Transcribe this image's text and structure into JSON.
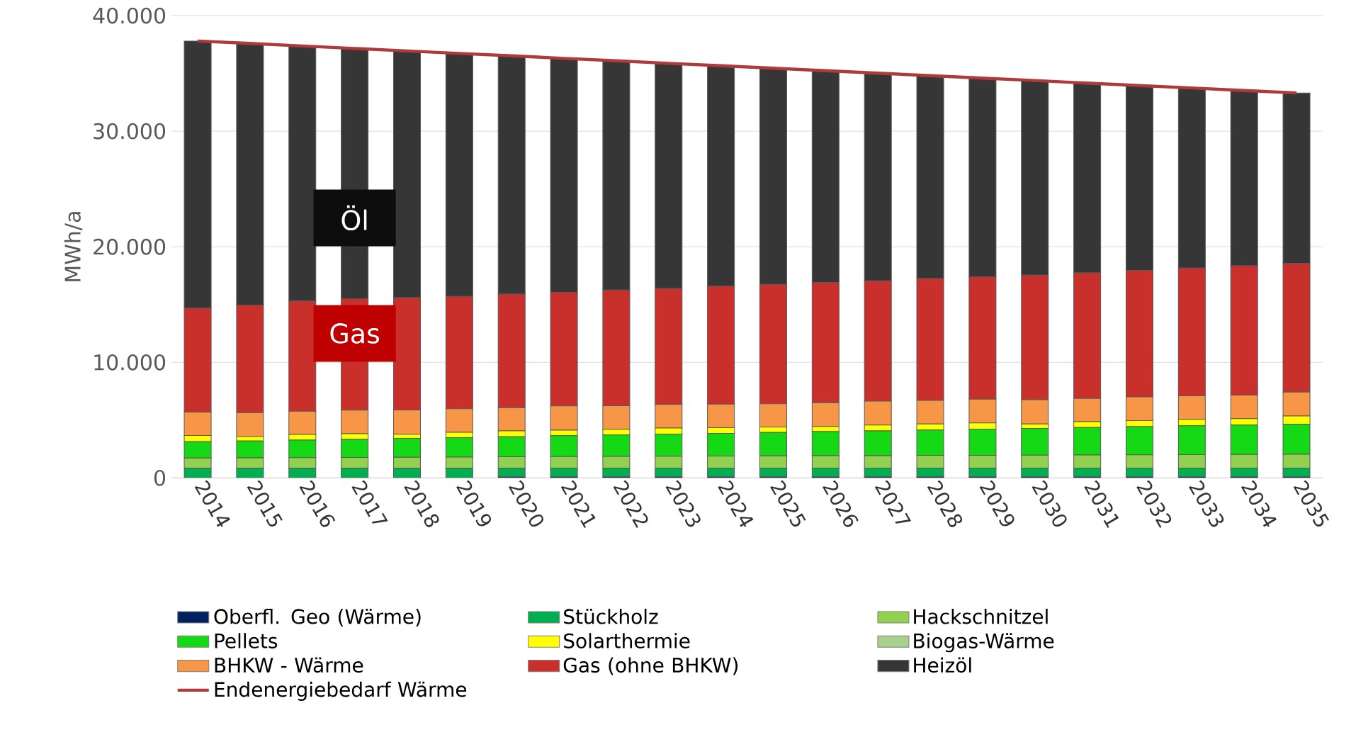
{
  "chart_data": {
    "type": "bar",
    "stacked": true,
    "ylabel": "MWh/a",
    "categories": [
      "2014",
      "2015",
      "2016",
      "2017",
      "2018",
      "2019",
      "2020",
      "2021",
      "2022",
      "2023",
      "2024",
      "2025",
      "2026",
      "2027",
      "2028",
      "2029",
      "2030",
      "2031",
      "2032",
      "2033",
      "2034",
      "2035"
    ],
    "ylim": [
      0,
      40000
    ],
    "yticks": [
      0,
      {
        "value": 10000,
        "label": "10.000"
      },
      {
        "value": 20000,
        "label": "20.000"
      },
      {
        "value": 30000,
        "label": "30.000"
      },
      {
        "value": 40000,
        "label": "40.000"
      }
    ],
    "grid": "y",
    "legend": "bottom",
    "annotations": [
      {
        "text": "Öl",
        "x": "2017",
        "y": 22500
      },
      {
        "text": "Gas",
        "x": "2017",
        "y": 12500
      }
    ],
    "series": [
      {
        "name": "Oberfl. Geo (Wärme)",
        "color": "#002060",
        "values": [
          0,
          0,
          0,
          0,
          0,
          0,
          100,
          100,
          100,
          100,
          100,
          100,
          100,
          100,
          100,
          100,
          100,
          100,
          100,
          100,
          100,
          100
        ]
      },
      {
        "name": "Stückholz",
        "color": "#00b050",
        "values": [
          830,
          830,
          830,
          830,
          830,
          830,
          750,
          750,
          750,
          750,
          750,
          750,
          750,
          750,
          750,
          750,
          750,
          750,
          750,
          750,
          750,
          750
        ]
      },
      {
        "name": "Hackschnitzel",
        "color": "#92d050",
        "values": [
          900,
          910,
          930,
          940,
          960,
          970,
          980,
          1000,
          1010,
          1030,
          1040,
          1050,
          1070,
          1080,
          1100,
          1110,
          1120,
          1140,
          1150,
          1170,
          1180,
          1200
        ]
      },
      {
        "name": "Pellets",
        "color": "#14d914",
        "values": [
          1400,
          1460,
          1510,
          1570,
          1630,
          1690,
          1740,
          1800,
          1860,
          1910,
          1970,
          2030,
          2090,
          2140,
          2200,
          2260,
          2310,
          2370,
          2430,
          2490,
          2540,
          2600
        ]
      },
      {
        "name": "Solarthermie",
        "color": "#ffff00",
        "values": [
          540,
          400,
          500,
          480,
          360,
          450,
          500,
          480,
          480,
          520,
          480,
          480,
          450,
          500,
          510,
          540,
          380,
          510,
          530,
          550,
          550,
          710
        ]
      },
      {
        "name": "Biogas-Wärme",
        "color": "#a9d18e",
        "values": [
          0,
          0,
          0,
          0,
          0,
          0,
          0,
          0,
          0,
          0,
          0,
          0,
          0,
          0,
          0,
          0,
          0,
          0,
          0,
          0,
          0,
          0
        ]
      },
      {
        "name": "BHKW - Wärme",
        "color": "#f79646",
        "values": [
          2020,
          2050,
          2000,
          2050,
          2100,
          2050,
          2000,
          2100,
          2050,
          2050,
          2050,
          2000,
          2050,
          2070,
          2050,
          2050,
          2100,
          2000,
          2050,
          2050,
          2050,
          2070
        ]
      },
      {
        "name": "Gas (ohne BHKW)",
        "color": "#c9302c",
        "values": [
          9010,
          9300,
          9530,
          9630,
          9720,
          9710,
          9830,
          9820,
          10000,
          10040,
          10210,
          10340,
          10390,
          10410,
          10540,
          10590,
          10790,
          10880,
          10940,
          11040,
          11180,
          11120
        ]
      },
      {
        "name": "Heizöl",
        "color": "#363636",
        "values": [
          23100,
          22640,
          22070,
          21660,
          21340,
          21030,
          20620,
          20250,
          19840,
          19470,
          19060,
          18700,
          18330,
          17970,
          17550,
          17190,
          16830,
          16410,
          16000,
          15590,
          15170,
          14760
        ]
      },
      {
        "name": "Endenergiebedarf Wärme",
        "type": "line",
        "color": "#b03a3a",
        "values": [
          37800,
          37590,
          37370,
          37160,
          36940,
          36730,
          36520,
          36300,
          36090,
          35870,
          35660,
          35450,
          35230,
          35020,
          34800,
          34590,
          34380,
          34160,
          33950,
          33740,
          33520,
          33310
        ]
      }
    ]
  }
}
